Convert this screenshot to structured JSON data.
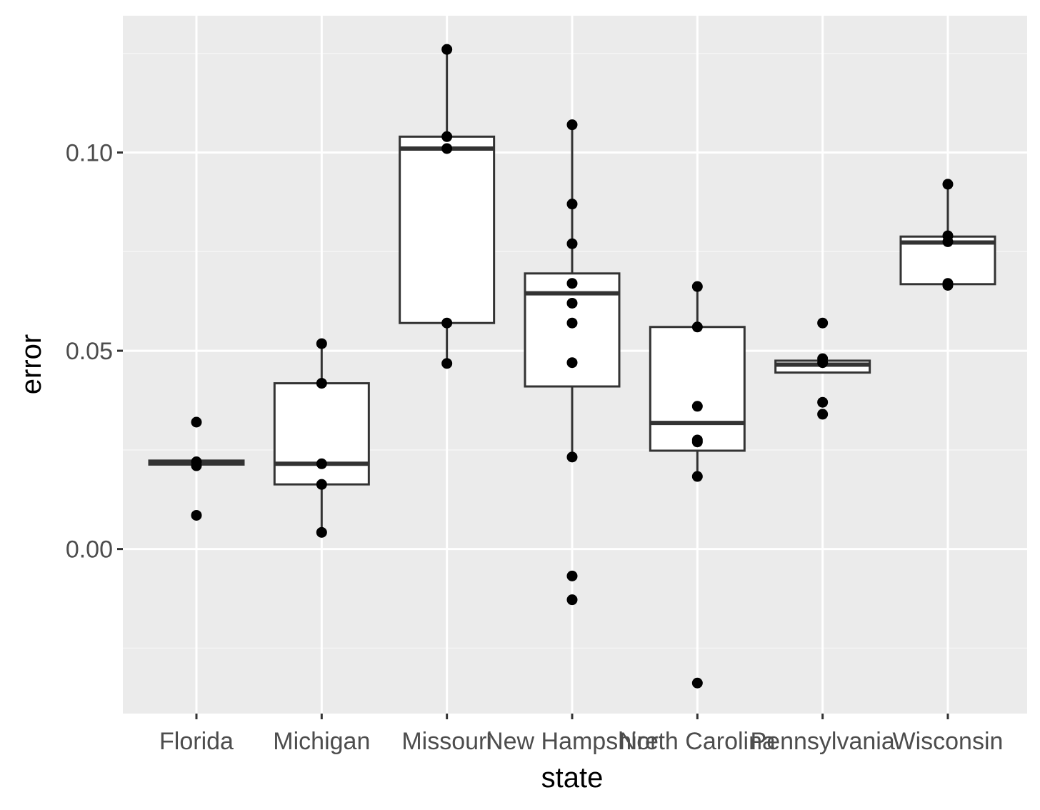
{
  "chart_data": {
    "type": "boxplot",
    "title": "",
    "xlabel": "state",
    "ylabel": "error",
    "categories": [
      "Florida",
      "Michigan",
      "Missouri",
      "New Hampshire",
      "North Carolina",
      "Pennsylvania",
      "Wisconsin"
    ],
    "ylim": [
      -0.0415,
      0.1345
    ],
    "y_ticks": [
      0.0,
      0.05,
      0.1
    ],
    "y_tick_labels": [
      "0.00",
      "0.05",
      "0.10"
    ],
    "grid": true,
    "legend": "none",
    "colors": {
      "panel_background": "#ebebeb",
      "grid_major": "#ffffff",
      "grid_minor": "#f5f5f5",
      "box_fill": "#ffffff",
      "box_stroke": "#333333",
      "point": "#000000",
      "tick_label": "#4d4d4d"
    },
    "boxes": [
      {
        "category": "Florida",
        "q1": 0.0213,
        "median": 0.0218,
        "q3": 0.0223,
        "whisker_low": 0.0213,
        "whisker_high": 0.0223
      },
      {
        "category": "Michigan",
        "q1": 0.0163,
        "median": 0.0215,
        "q3": 0.0418,
        "whisker_low": 0.0042,
        "whisker_high": 0.0518
      },
      {
        "category": "Missouri",
        "q1": 0.057,
        "median": 0.101,
        "q3": 0.104,
        "whisker_low": 0.0468,
        "whisker_high": 0.126
      },
      {
        "category": "New Hampshire",
        "q1": 0.041,
        "median": 0.0645,
        "q3": 0.0695,
        "whisker_low": 0.0232,
        "whisker_high": 0.107
      },
      {
        "category": "North Carolina",
        "q1": 0.0248,
        "median": 0.0318,
        "q3": 0.056,
        "whisker_low": 0.0183,
        "whisker_high": 0.0662
      },
      {
        "category": "Pennsylvania",
        "q1": 0.0445,
        "median": 0.0465,
        "q3": 0.0475,
        "whisker_low": 0.0445,
        "whisker_high": 0.0475
      },
      {
        "category": "Wisconsin",
        "q1": 0.0668,
        "median": 0.0773,
        "q3": 0.0788,
        "whisker_low": 0.0668,
        "whisker_high": 0.092
      }
    ],
    "points": [
      {
        "category": "Florida",
        "values": [
          0.032,
          0.022,
          0.021,
          0.0085
        ]
      },
      {
        "category": "Michigan",
        "values": [
          0.0518,
          0.0418,
          0.0215,
          0.0163,
          0.0042
        ]
      },
      {
        "category": "Missouri",
        "values": [
          0.126,
          0.104,
          0.101,
          0.057,
          0.0468
        ]
      },
      {
        "category": "New Hampshire",
        "values": [
          0.107,
          0.087,
          0.077,
          0.067,
          0.062,
          0.057,
          0.047,
          0.0232,
          -0.0068,
          -0.0128
        ]
      },
      {
        "category": "North Carolina",
        "values": [
          0.0662,
          0.056,
          0.036,
          0.0275,
          0.027,
          0.0183,
          -0.0338
        ]
      },
      {
        "category": "Pennsylvania",
        "values": [
          0.057,
          0.048,
          0.047,
          0.037,
          0.034
        ]
      },
      {
        "category": "Wisconsin",
        "values": [
          0.092,
          0.079,
          0.0775,
          0.067,
          0.0665
        ]
      }
    ]
  }
}
